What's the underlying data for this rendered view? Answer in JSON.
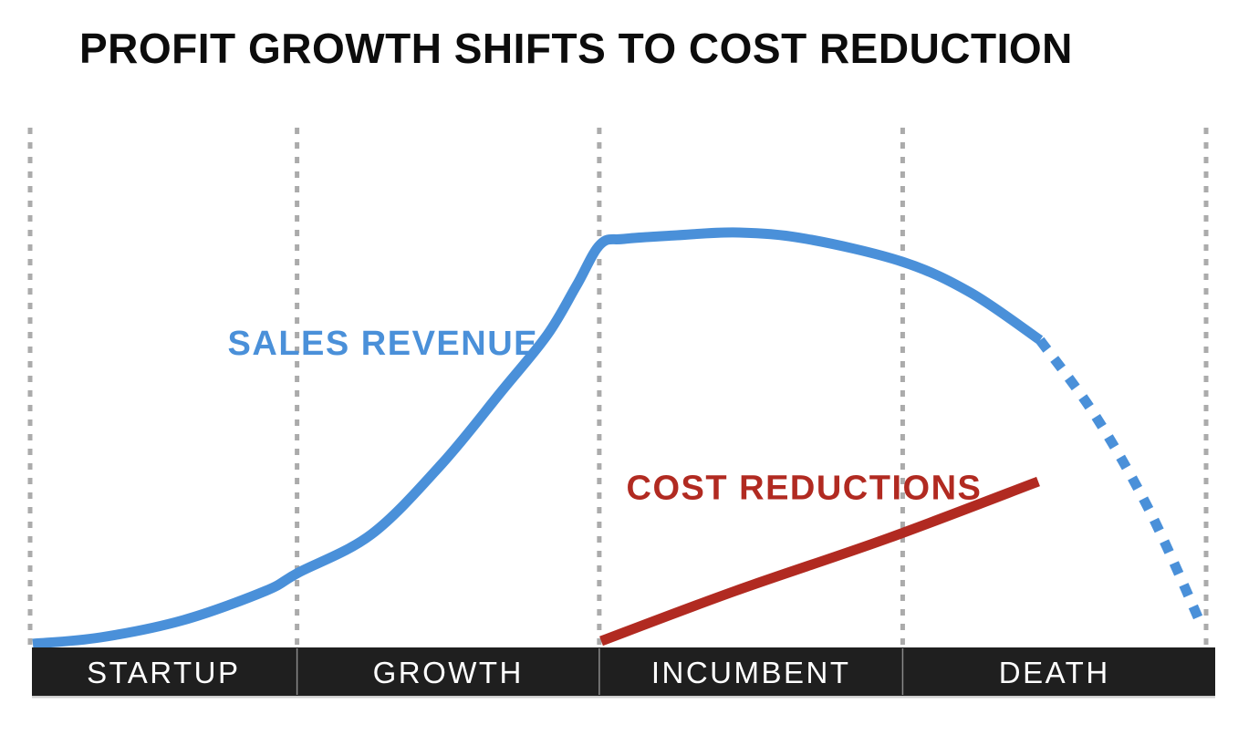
{
  "header": {
    "title": "PROFIT GROWTH SHIFTS TO COST REDUCTION"
  },
  "chart_data": {
    "type": "line",
    "title": "PROFIT GROWTH SHIFTS TO COST REDUCTION",
    "xlabel": "",
    "ylabel": "",
    "categories": [
      "STARTUP",
      "GROWTH",
      "INCUMBENT",
      "DEATH"
    ],
    "legend_position": "inline-labels-on-curves",
    "grid": "dotted vertical phase-boundary gridlines only, no numeric axes",
    "axis_note": "conceptual chart: x = company lifecycle phase, y = relative level (0-1 normalized)",
    "gridlines_x": [
      0,
      0.227,
      0.484,
      0.742,
      1
    ],
    "colors": {
      "sales": "#4A90D9",
      "cost": "#B12A21",
      "gridline": "#ABABAB",
      "phase_bar": "#1F1F1F",
      "phase_bar_divider": "#8A8A8A",
      "phase_bar_shadow": "#D0D0D0",
      "phase_label": "#FFFFFF",
      "title": "#0C0C0C"
    },
    "series": [
      {
        "name": "SALES REVENUE",
        "color": "#4A90D9",
        "style": "solid",
        "points": [
          [
            0.002,
            0.004
          ],
          [
            0.06,
            0.015
          ],
          [
            0.13,
            0.05
          ],
          [
            0.2,
            0.105
          ],
          [
            0.228,
            0.141
          ],
          [
            0.29,
            0.215
          ],
          [
            0.35,
            0.35
          ],
          [
            0.4,
            0.49
          ],
          [
            0.44,
            0.6
          ],
          [
            0.465,
            0.695
          ],
          [
            0.485,
            0.775
          ],
          [
            0.505,
            0.786
          ],
          [
            0.55,
            0.793
          ],
          [
            0.603,
            0.797
          ],
          [
            0.66,
            0.785
          ],
          [
            0.742,
            0.741
          ],
          [
            0.8,
            0.682
          ],
          [
            0.859,
            0.59
          ]
        ]
      },
      {
        "name": "SALES REVENUE (dashed decline in DEATH phase)",
        "color": "#4A90D9",
        "style": "dashed",
        "points": [
          [
            0.859,
            0.59
          ],
          [
            0.905,
            0.445
          ],
          [
            0.952,
            0.26
          ],
          [
            0.997,
            0.035
          ]
        ]
      },
      {
        "name": "COST REDUCTIONS",
        "color": "#B12A21",
        "style": "solid",
        "points": [
          [
            0.486,
            0.009
          ],
          [
            0.6,
            0.105
          ],
          [
            0.73,
            0.207
          ],
          [
            0.857,
            0.317
          ]
        ]
      }
    ],
    "annotations": [
      {
        "text": "SALES REVENUE",
        "color": "#4A90D9",
        "x": 0.168,
        "y": 0.562
      },
      {
        "text": "COST REDUCTIONS",
        "color": "#B12A21",
        "x": 0.507,
        "y": 0.283
      }
    ]
  }
}
